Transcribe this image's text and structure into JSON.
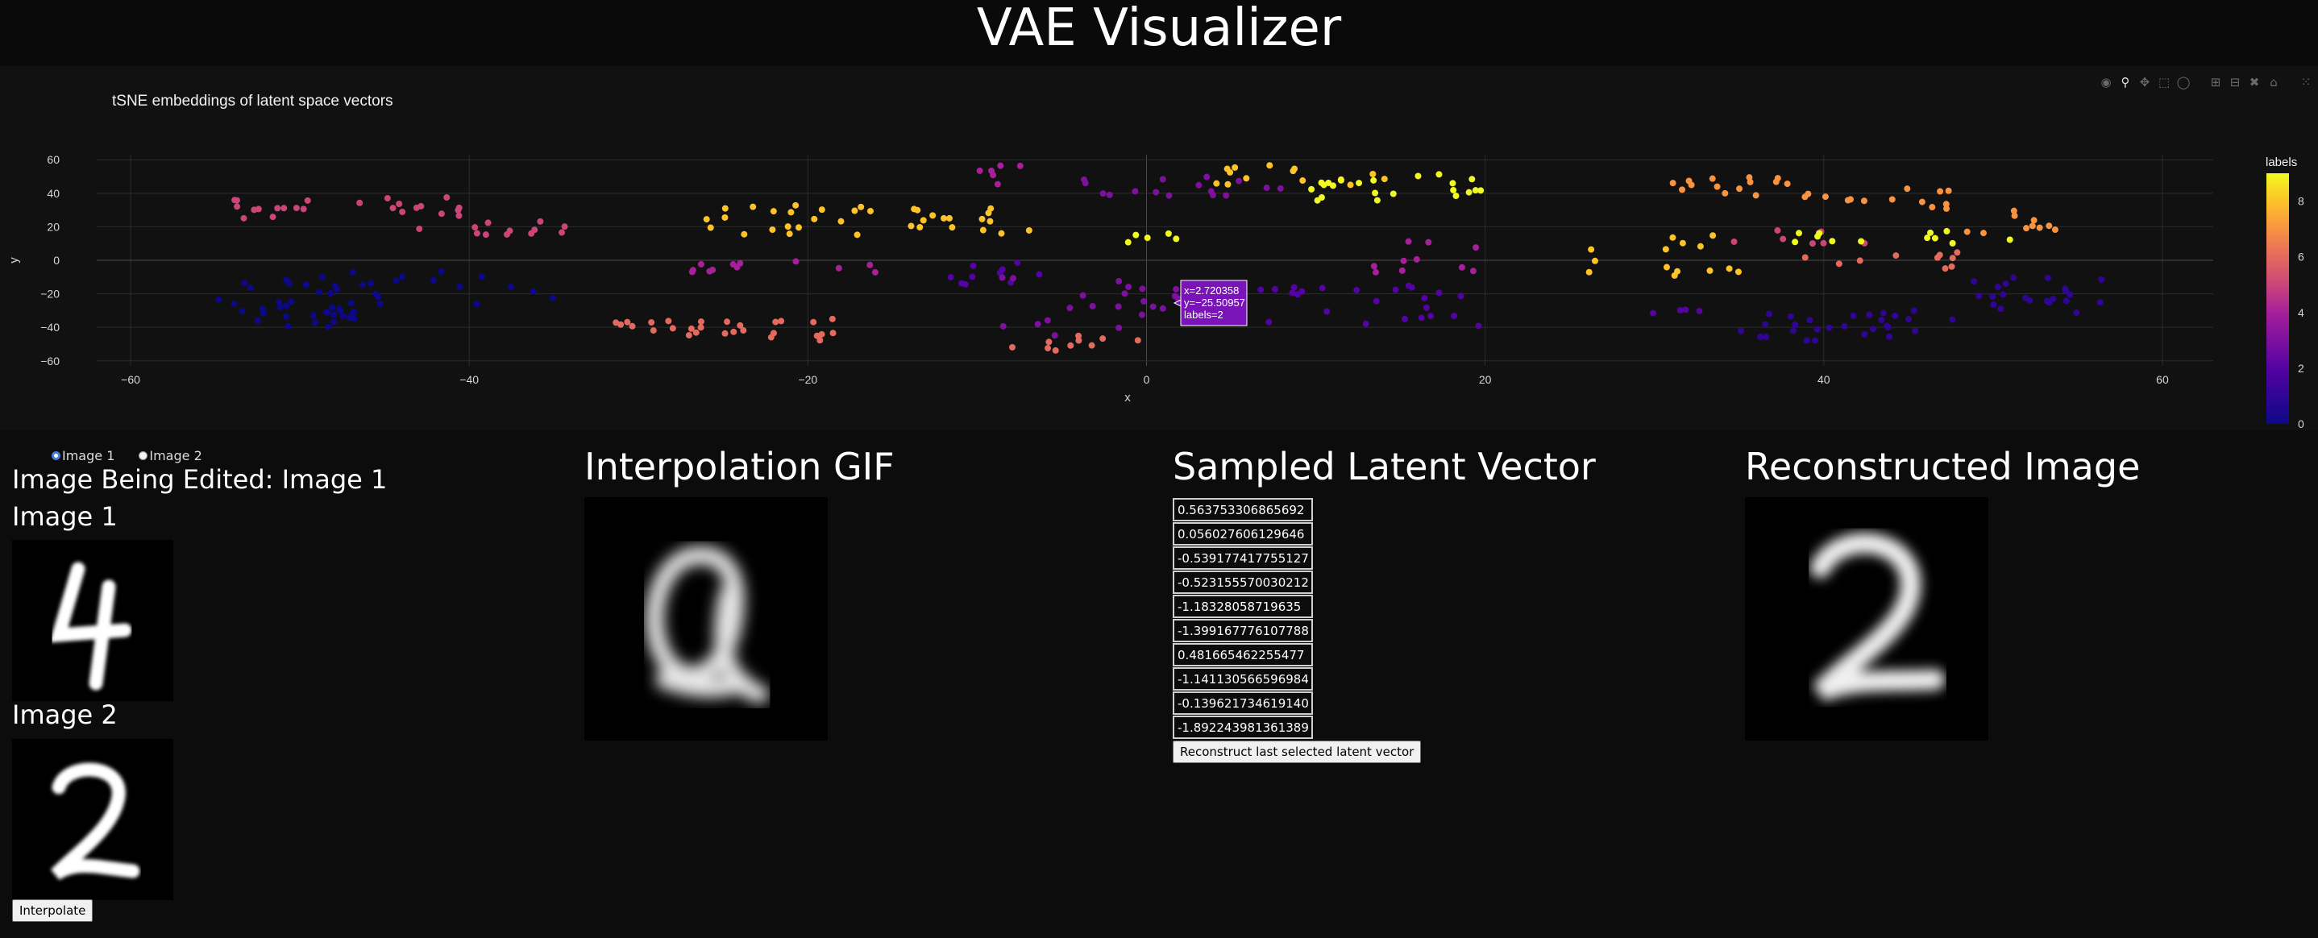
{
  "app": {
    "title": "VAE Visualizer"
  },
  "plot": {
    "title": "tSNE embeddings of latent space vectors",
    "tooltip": {
      "x": "x=2.720358",
      "y": "y=−25.50957",
      "label": "labels=2"
    },
    "colorbar_title": "labels",
    "modebar_icons": [
      "camera-icon",
      "zoom-icon",
      "pan-icon",
      "box-select-icon",
      "lasso-icon",
      "zoom-in-icon",
      "zoom-out-icon",
      "autoscale-icon",
      "reset-axes-icon",
      "plotly-logo-icon"
    ]
  },
  "chart_data": {
    "type": "scatter",
    "title": "tSNE embeddings of latent space vectors",
    "xlabel": "x",
    "ylabel": "y",
    "xlim": [
      -62,
      63
    ],
    "ylim": [
      -63,
      63
    ],
    "xticks": [
      -60,
      -40,
      -20,
      0,
      20,
      40,
      60
    ],
    "yticks": [
      60,
      40,
      20,
      0,
      -20,
      -40,
      -60
    ],
    "grid": true,
    "colorscale": "plasma",
    "color_label": "labels",
    "color_range": [
      0,
      9
    ],
    "colorbar_ticks": [
      8,
      6,
      4,
      2,
      0
    ],
    "clusters": [
      {
        "label": 0,
        "x": [
          -55,
          -45
        ],
        "y": [
          -40,
          -10
        ],
        "n": 40
      },
      {
        "label": 0,
        "x": [
          -48,
          -35
        ],
        "y": [
          -40,
          -5
        ],
        "n": 15
      },
      {
        "label": 1,
        "x": [
          35,
          48
        ],
        "y": [
          -48,
          -30
        ],
        "n": 28
      },
      {
        "label": 1,
        "x": [
          48,
          57
        ],
        "y": [
          -32,
          -10
        ],
        "n": 22
      },
      {
        "label": 2,
        "x": [
          4,
          20
        ],
        "y": [
          -40,
          -15
        ],
        "n": 26
      },
      {
        "label": 2,
        "x": [
          -12,
          -5
        ],
        "y": [
          -15,
          0
        ],
        "n": 10
      },
      {
        "label": 2,
        "x": [
          28,
          34
        ],
        "y": [
          -32,
          -28
        ],
        "n": 4
      },
      {
        "label": 3,
        "x": [
          -9,
          2
        ],
        "y": [
          -45,
          -10
        ],
        "n": 22
      },
      {
        "label": 3,
        "x": [
          -4,
          8
        ],
        "y": [
          38,
          50
        ],
        "n": 16
      },
      {
        "label": 4,
        "x": [
          -27,
          -14
        ],
        "y": [
          -8,
          0
        ],
        "n": 12
      },
      {
        "label": 4,
        "x": [
          13,
          20
        ],
        "y": [
          -8,
          12
        ],
        "n": 10
      },
      {
        "label": 4,
        "x": [
          -12,
          -6
        ],
        "y": [
          45,
          58
        ],
        "n": 6
      },
      {
        "label": 5,
        "x": [
          -56,
          -40
        ],
        "y": [
          25,
          38
        ],
        "n": 24
      },
      {
        "label": 5,
        "x": [
          -43,
          -34
        ],
        "y": [
          15,
          25
        ],
        "n": 12
      },
      {
        "label": 5,
        "x": [
          34,
          44
        ],
        "y": [
          10,
          18
        ],
        "n": 8
      },
      {
        "label": 6,
        "x": [
          -32,
          -23
        ],
        "y": [
          -45,
          -35
        ],
        "n": 18
      },
      {
        "label": 6,
        "x": [
          -23,
          -18
        ],
        "y": [
          -48,
          -35
        ],
        "n": 10
      },
      {
        "label": 6,
        "x": [
          -8,
          0
        ],
        "y": [
          -55,
          -45
        ],
        "n": 10
      },
      {
        "label": 6,
        "x": [
          37,
          48
        ],
        "y": [
          -5,
          5
        ],
        "n": 10
      },
      {
        "label": 7,
        "x": [
          30,
          38
        ],
        "y": [
          38,
          50
        ],
        "n": 14
      },
      {
        "label": 7,
        "x": [
          38,
          48
        ],
        "y": [
          30,
          45
        ],
        "n": 14
      },
      {
        "label": 7,
        "x": [
          48,
          54
        ],
        "y": [
          15,
          30
        ],
        "n": 10
      },
      {
        "label": 8,
        "x": [
          -26,
          -16
        ],
        "y": [
          15,
          35
        ],
        "n": 20
      },
      {
        "label": 8,
        "x": [
          -14,
          -6
        ],
        "y": [
          15,
          32
        ],
        "n": 16
      },
      {
        "label": 8,
        "x": [
          26,
          36
        ],
        "y": [
          -10,
          18
        ],
        "n": 14
      },
      {
        "label": 8,
        "x": [
          4,
          15
        ],
        "y": [
          45,
          58
        ],
        "n": 14
      },
      {
        "label": 9,
        "x": [
          8,
          20
        ],
        "y": [
          35,
          52
        ],
        "n": 22
      },
      {
        "label": 9,
        "x": [
          38,
          52
        ],
        "y": [
          10,
          18
        ],
        "n": 12
      },
      {
        "label": 9,
        "x": [
          -2,
          3
        ],
        "y": [
          10,
          20
        ],
        "n": 5
      }
    ],
    "highlight_point": {
      "x": 2.720358,
      "y": -25.50957,
      "label": 2
    }
  },
  "controls": {
    "radio_options": [
      {
        "label": "Image 1",
        "checked": true
      },
      {
        "label": "Image 2",
        "checked": false
      }
    ],
    "editing_label": "Image Being Edited: Image 1",
    "image1_label": "Image 1",
    "image2_label": "Image 2",
    "interpolate_button": "Interpolate"
  },
  "interpolation": {
    "heading": "Interpolation GIF"
  },
  "latent": {
    "heading": "Sampled Latent Vector",
    "values": [
      "0.563753306865692",
      "0.056027606129646",
      "-0.539177417755127",
      "-0.523155570030212",
      "-1.18328058719635",
      "-1.399167776107788",
      "0.481665462255477",
      "-1.141130566596984",
      "-0.139621734619140",
      "-1.892243981361389"
    ],
    "reconstruct_button": "Reconstruct last selected latent vector"
  },
  "reconstruction": {
    "heading": "Reconstructed Image"
  }
}
